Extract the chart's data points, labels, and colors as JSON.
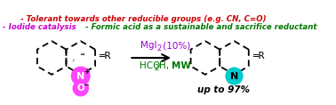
{
  "bg_color": "#ffffff",
  "reagent1_color": "#9900cc",
  "reagent2_color": "#007700",
  "yield_color": "#000000",
  "bullet1_color": "#cc00cc",
  "bullet2_color": "#007700",
  "bullet3_color": "#cc0000",
  "substrate_color": "#ff44ff",
  "product_N_color": "#00cccc",
  "bullet1_text": "Iodide catalysis",
  "bullet2_text": "Formic acid as a sustainable and sacrifice reductant",
  "bullet3_text": "Tolerant towards other reducible groups (e.g. CN, C=O)"
}
